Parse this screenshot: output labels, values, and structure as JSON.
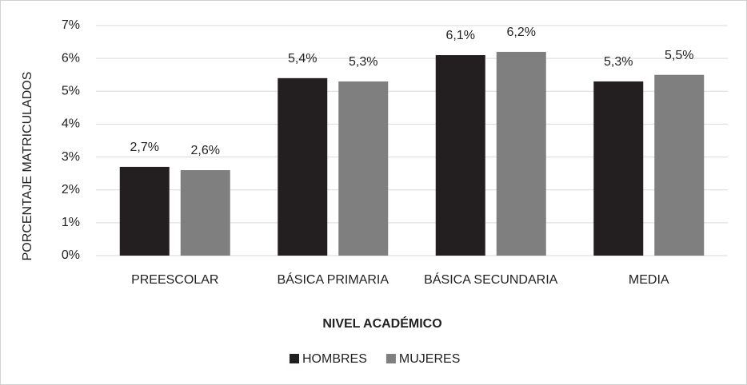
{
  "chart_data": {
    "type": "bar",
    "x_label": "NIVEL ACADÉMICO",
    "y_label": "PORCENTAJE MATRICULADOS",
    "categories": [
      "PREESCOLAR",
      "BÁSICA PRIMARIA",
      "BÁSICA SECUNDARIA",
      "MEDIA"
    ],
    "series": [
      {
        "name": "HOMBRES",
        "color": "#231f20",
        "values": [
          2.7,
          5.4,
          6.1,
          5.3
        ],
        "value_labels": [
          "2,7%",
          "5,4%",
          "6,1%",
          "5,3%"
        ]
      },
      {
        "name": "MUJERES",
        "color": "#7f7f7f",
        "values": [
          2.6,
          5.3,
          6.2,
          5.5
        ],
        "value_labels": [
          "2,6%",
          "5,3%",
          "6,2%",
          "5,5%"
        ]
      }
    ],
    "ylim": [
      0,
      7
    ],
    "yticks": [
      {
        "value": 0,
        "label": "0%"
      },
      {
        "value": 1,
        "label": "1%"
      },
      {
        "value": 2,
        "label": "2%"
      },
      {
        "value": 3,
        "label": "3%"
      },
      {
        "value": 4,
        "label": "4%"
      },
      {
        "value": 5,
        "label": "5%"
      },
      {
        "value": 6,
        "label": "6%"
      },
      {
        "value": 7,
        "label": "7%"
      }
    ],
    "grid": true,
    "legend": "bottom"
  }
}
